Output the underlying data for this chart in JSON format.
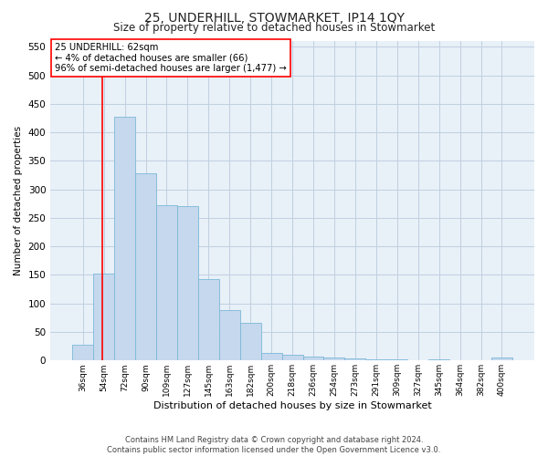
{
  "title": "25, UNDERHILL, STOWMARKET, IP14 1QY",
  "subtitle": "Size of property relative to detached houses in Stowmarket",
  "xlabel": "Distribution of detached houses by size in Stowmarket",
  "ylabel": "Number of detached properties",
  "categories": [
    "36sqm",
    "54sqm",
    "72sqm",
    "90sqm",
    "109sqm",
    "127sqm",
    "145sqm",
    "163sqm",
    "182sqm",
    "200sqm",
    "218sqm",
    "236sqm",
    "254sqm",
    "273sqm",
    "291sqm",
    "309sqm",
    "327sqm",
    "345sqm",
    "364sqm",
    "382sqm",
    "400sqm"
  ],
  "values": [
    28,
    153,
    428,
    328,
    273,
    270,
    143,
    89,
    66,
    13,
    10,
    7,
    5,
    4,
    2,
    2,
    1,
    2,
    1,
    1,
    5
  ],
  "bar_color": "#c5d8ed",
  "bar_edge_color": "#7bb8d8",
  "annotation_box_text": "25 UNDERHILL: 62sqm\n← 4% of detached houses are smaller (66)\n96% of semi-detached houses are larger (1,477) →",
  "background_color": "#ffffff",
  "plot_bg_color": "#e8f0f8",
  "grid_color": "#c0d0e0",
  "footnote": "Contains HM Land Registry data © Crown copyright and database right 2024.\nContains public sector information licensed under the Open Government Licence v3.0.",
  "ylim": [
    0,
    560
  ],
  "yticks": [
    0,
    50,
    100,
    150,
    200,
    250,
    300,
    350,
    400,
    450,
    500,
    550
  ],
  "vline_pos": 0.944
}
